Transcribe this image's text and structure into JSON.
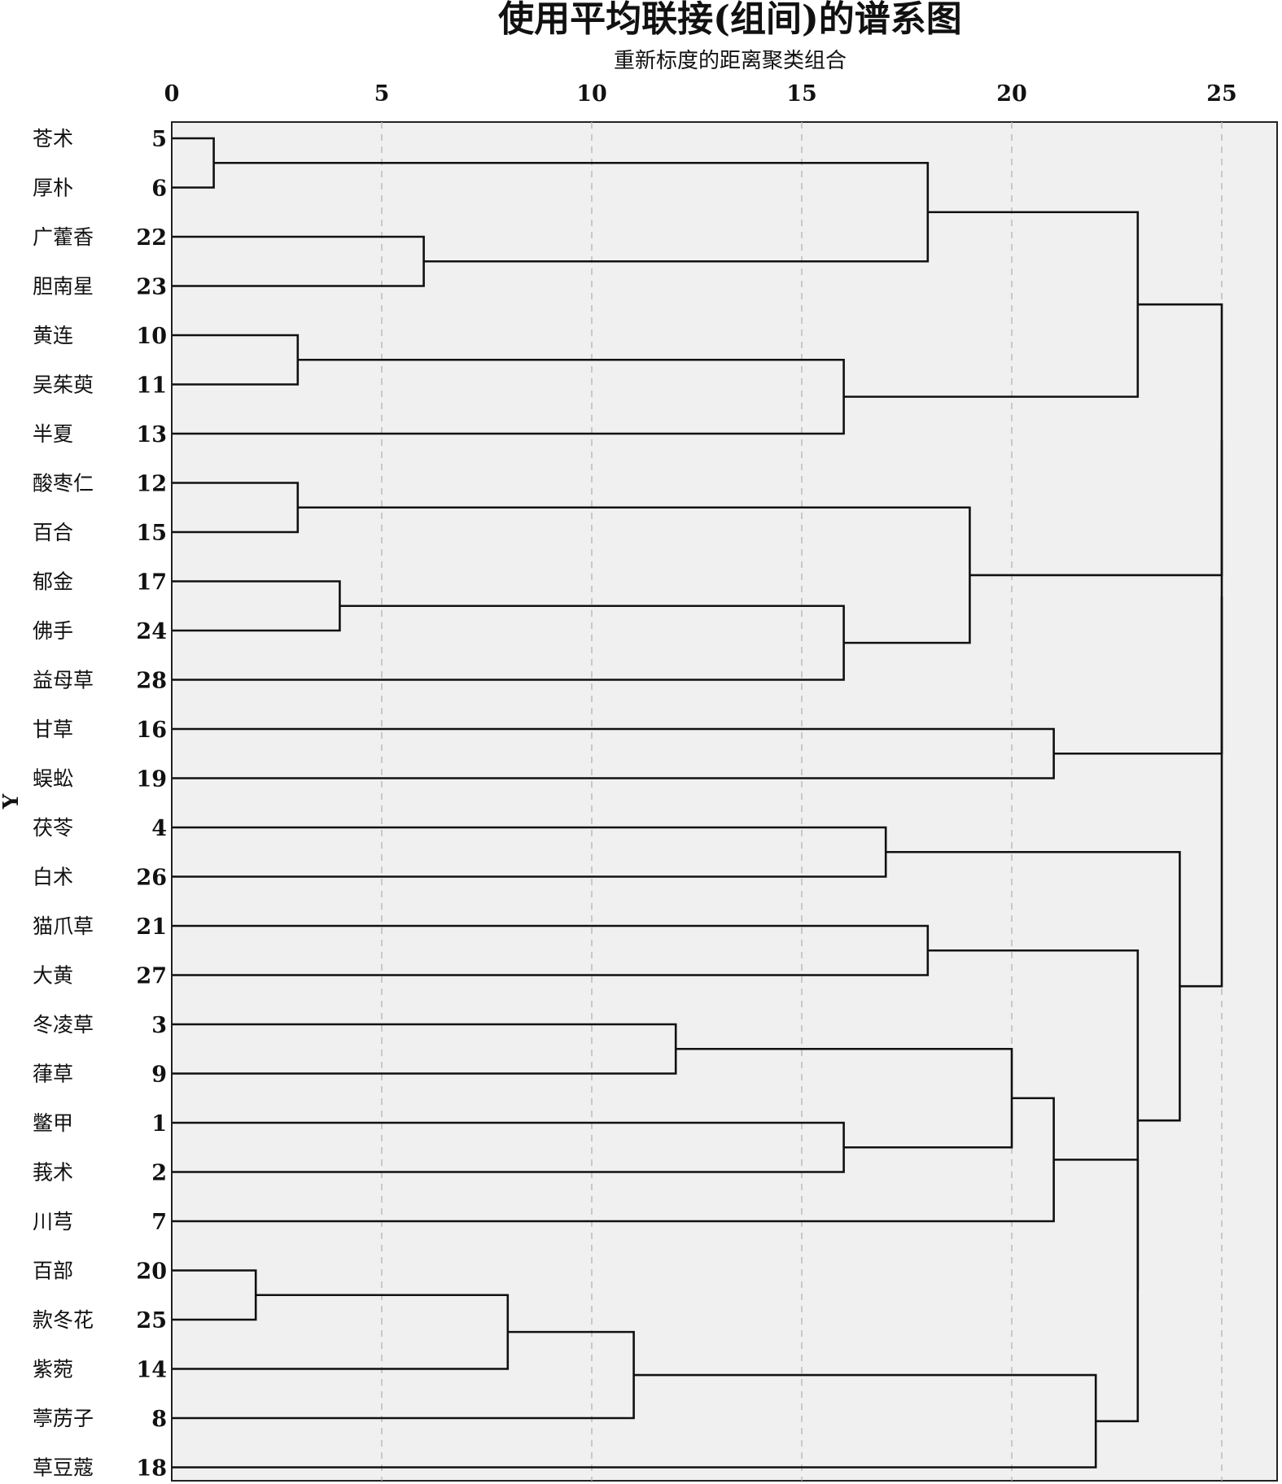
{
  "title": "使用平均联接(组间)的谱系图",
  "subtitle": "重新标度的距离聚类组合",
  "y_axis_label": "Y",
  "chart_data": {
    "type": "dendrogram",
    "title": "使用平均联接(组间)的谱系图",
    "xlabel": "重新标度的距离聚类组合",
    "ylabel": "Y",
    "xlim": [
      0,
      25
    ],
    "x_ticks": [
      "0",
      "5",
      "10",
      "15",
      "20",
      "25"
    ],
    "grid": "dashed vertical lines at 5, 10, 15, 20, 25",
    "leaves": [
      {
        "name": "苍术",
        "id": "5"
      },
      {
        "name": "厚朴",
        "id": "6"
      },
      {
        "name": "广藿香",
        "id": "22"
      },
      {
        "name": "胆南星",
        "id": "23"
      },
      {
        "name": "黄连",
        "id": "10"
      },
      {
        "name": "吴茱萸",
        "id": "11"
      },
      {
        "name": "半夏",
        "id": "13"
      },
      {
        "name": "酸枣仁",
        "id": "12"
      },
      {
        "name": "百合",
        "id": "15"
      },
      {
        "name": "郁金",
        "id": "17"
      },
      {
        "name": "佛手",
        "id": "24"
      },
      {
        "name": "益母草",
        "id": "28"
      },
      {
        "name": "甘草",
        "id": "16"
      },
      {
        "name": "蜈蚣",
        "id": "19"
      },
      {
        "name": "茯苓",
        "id": "4"
      },
      {
        "name": "白术",
        "id": "26"
      },
      {
        "name": "猫爪草",
        "id": "21"
      },
      {
        "name": "大黄",
        "id": "27"
      },
      {
        "name": "冬凌草",
        "id": "3"
      },
      {
        "name": "葎草",
        "id": "9"
      },
      {
        "name": "鳖甲",
        "id": "1"
      },
      {
        "name": "莪术",
        "id": "2"
      },
      {
        "name": "川芎",
        "id": "7"
      },
      {
        "name": "百部",
        "id": "20"
      },
      {
        "name": "款冬花",
        "id": "25"
      },
      {
        "name": "紫菀",
        "id": "14"
      },
      {
        "name": "葶苈子",
        "id": "8"
      },
      {
        "name": "草豆蔻",
        "id": "18"
      }
    ],
    "merges": [
      {
        "left": "L0",
        "right": "L1",
        "height": 1
      },
      {
        "left": "L2",
        "right": "L3",
        "height": 6
      },
      {
        "left": "M0",
        "right": "M1",
        "height": 18
      },
      {
        "left": "L4",
        "right": "L5",
        "height": 3
      },
      {
        "left": "M3",
        "right": "L6",
        "height": 16
      },
      {
        "left": "M2",
        "right": "M4",
        "height": 23
      },
      {
        "left": "L7",
        "right": "L8",
        "height": 3
      },
      {
        "left": "L9",
        "right": "L10",
        "height": 4
      },
      {
        "left": "M7",
        "right": "L11",
        "height": 16
      },
      {
        "left": "M6",
        "right": "M8",
        "height": 19
      },
      {
        "left": "L12",
        "right": "L13",
        "height": 21
      },
      {
        "left": "L14",
        "right": "L15",
        "height": 17
      },
      {
        "left": "L16",
        "right": "L17",
        "height": 18
      },
      {
        "left": "L18",
        "right": "L19",
        "height": 12
      },
      {
        "left": "L20",
        "right": "L21",
        "height": 16
      },
      {
        "left": "M13",
        "right": "M14",
        "height": 20
      },
      {
        "left": "M15",
        "right": "L22",
        "height": 21
      },
      {
        "left": "L23",
        "right": "L24",
        "height": 2
      },
      {
        "left": "M17",
        "right": "L25",
        "height": 8
      },
      {
        "left": "M18",
        "right": "L26",
        "height": 11
      },
      {
        "left": "M19",
        "right": "L27",
        "height": 22
      },
      {
        "left": "M16",
        "right": "M20",
        "height": 23
      },
      {
        "left": "M12",
        "right": "M21",
        "height": 23
      },
      {
        "left": "M11",
        "right": "M22",
        "height": 24
      },
      {
        "left": "M5",
        "right": "M9",
        "height": 25
      },
      {
        "left": "M24",
        "right": "M10",
        "height": 25
      },
      {
        "left": "M25",
        "right": "M23",
        "height": 25
      }
    ]
  }
}
